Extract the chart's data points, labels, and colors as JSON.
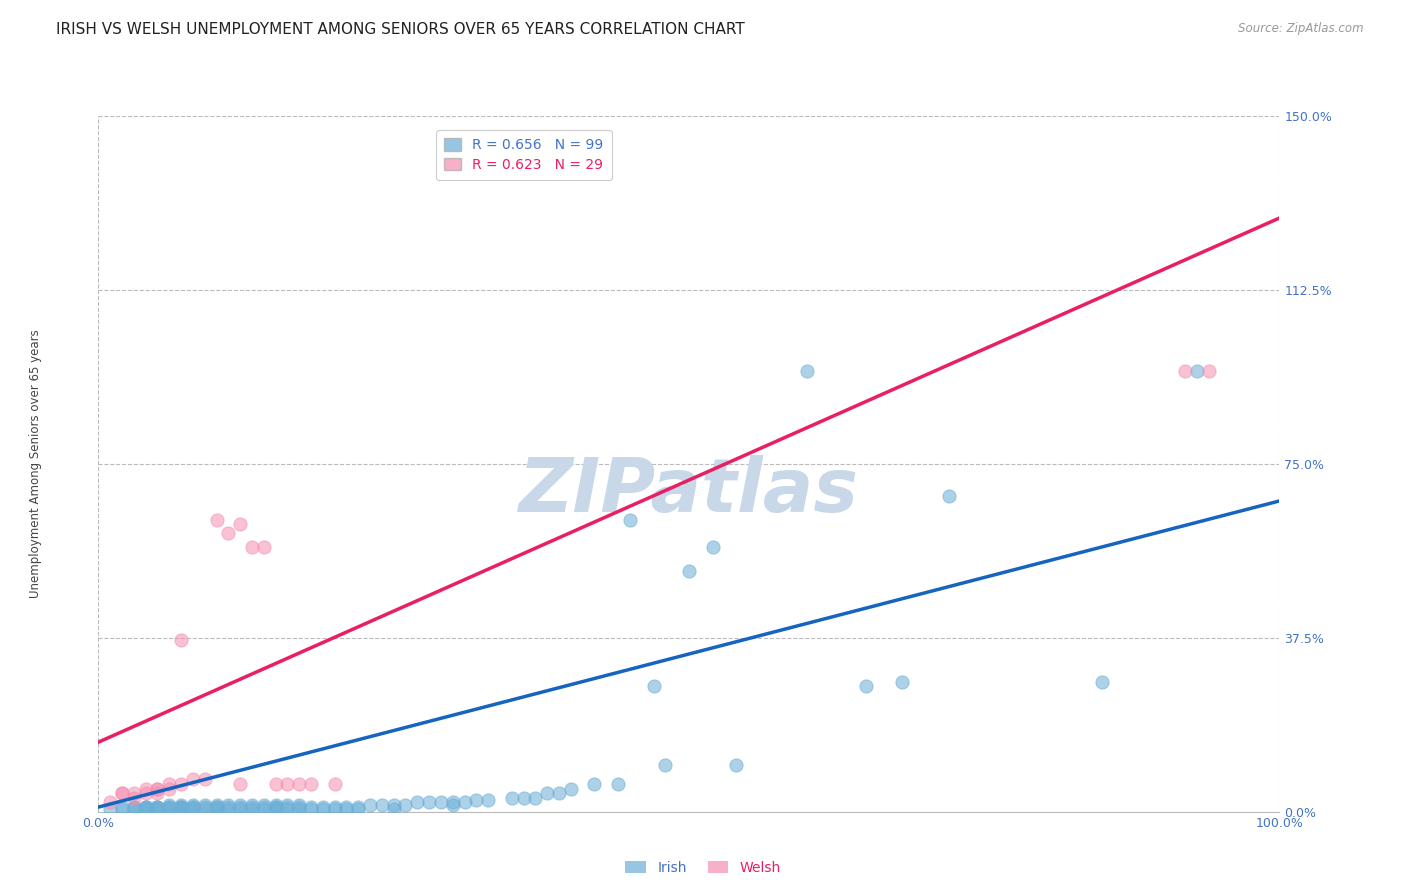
{
  "title": "IRISH VS WELSH UNEMPLOYMENT AMONG SENIORS OVER 65 YEARS CORRELATION CHART",
  "source": "Source: ZipAtlas.com",
  "ylabel": "Unemployment Among Seniors over 65 years",
  "xlim": [
    0.0,
    1.0
  ],
  "ylim": [
    0.0,
    1.5
  ],
  "xtick_positions": [
    0.0,
    1.0
  ],
  "xtick_labels": [
    "0.0%",
    "100.0%"
  ],
  "ytick_values": [
    0.0,
    0.375,
    0.75,
    1.125,
    1.5
  ],
  "ytick_labels": [
    "0.0%",
    "37.5%",
    "75.0%",
    "112.5%",
    "150.0%"
  ],
  "irish_R": 0.656,
  "irish_N": 99,
  "welsh_R": 0.623,
  "welsh_N": 29,
  "irish_color": "#6baed6",
  "welsh_color": "#f48fb1",
  "irish_line_color": "#1565c0",
  "welsh_line_color": "#e91e63",
  "irish_scatter_x": [
    0.01,
    0.02,
    0.02,
    0.03,
    0.03,
    0.03,
    0.04,
    0.04,
    0.04,
    0.04,
    0.05,
    0.05,
    0.05,
    0.05,
    0.06,
    0.06,
    0.06,
    0.06,
    0.07,
    0.07,
    0.07,
    0.07,
    0.07,
    0.08,
    0.08,
    0.08,
    0.08,
    0.09,
    0.09,
    0.09,
    0.1,
    0.1,
    0.1,
    0.1,
    0.11,
    0.11,
    0.11,
    0.12,
    0.12,
    0.12,
    0.13,
    0.13,
    0.13,
    0.14,
    0.14,
    0.14,
    0.15,
    0.15,
    0.15,
    0.15,
    0.16,
    0.16,
    0.16,
    0.17,
    0.17,
    0.17,
    0.18,
    0.18,
    0.19,
    0.19,
    0.2,
    0.2,
    0.21,
    0.21,
    0.22,
    0.22,
    0.23,
    0.24,
    0.25,
    0.25,
    0.26,
    0.27,
    0.28,
    0.29,
    0.3,
    0.3,
    0.31,
    0.32,
    0.33,
    0.35,
    0.36,
    0.37,
    0.38,
    0.39,
    0.4,
    0.42,
    0.44,
    0.45,
    0.47,
    0.48,
    0.5,
    0.52,
    0.54,
    0.6,
    0.65,
    0.68,
    0.72,
    0.85,
    0.93
  ],
  "irish_scatter_y": [
    0.005,
    0.005,
    0.01,
    0.005,
    0.01,
    0.01,
    0.005,
    0.01,
    0.01,
    0.01,
    0.005,
    0.01,
    0.01,
    0.01,
    0.005,
    0.01,
    0.01,
    0.015,
    0.005,
    0.01,
    0.01,
    0.015,
    0.01,
    0.005,
    0.01,
    0.01,
    0.015,
    0.005,
    0.01,
    0.015,
    0.005,
    0.01,
    0.01,
    0.015,
    0.005,
    0.01,
    0.015,
    0.005,
    0.01,
    0.015,
    0.005,
    0.01,
    0.015,
    0.005,
    0.01,
    0.015,
    0.005,
    0.01,
    0.01,
    0.015,
    0.005,
    0.01,
    0.015,
    0.005,
    0.01,
    0.015,
    0.005,
    0.01,
    0.005,
    0.01,
    0.005,
    0.01,
    0.005,
    0.01,
    0.005,
    0.01,
    0.015,
    0.015,
    0.005,
    0.015,
    0.015,
    0.02,
    0.02,
    0.02,
    0.015,
    0.02,
    0.02,
    0.025,
    0.025,
    0.03,
    0.03,
    0.03,
    0.04,
    0.04,
    0.05,
    0.06,
    0.06,
    0.63,
    0.27,
    0.1,
    0.52,
    0.57,
    0.1,
    0.95,
    0.27,
    0.28,
    0.68,
    0.28,
    0.95
  ],
  "welsh_scatter_x": [
    0.01,
    0.02,
    0.02,
    0.03,
    0.03,
    0.04,
    0.04,
    0.05,
    0.05,
    0.05,
    0.06,
    0.06,
    0.07,
    0.07,
    0.08,
    0.09,
    0.1,
    0.11,
    0.12,
    0.12,
    0.13,
    0.14,
    0.15,
    0.16,
    0.17,
    0.18,
    0.2,
    0.92,
    0.94
  ],
  "welsh_scatter_y": [
    0.02,
    0.04,
    0.04,
    0.03,
    0.04,
    0.04,
    0.05,
    0.04,
    0.05,
    0.05,
    0.05,
    0.06,
    0.37,
    0.06,
    0.07,
    0.07,
    0.63,
    0.6,
    0.62,
    0.06,
    0.57,
    0.57,
    0.06,
    0.06,
    0.06,
    0.06,
    0.06,
    0.95,
    0.95
  ],
  "irish_trend_x": [
    0.0,
    1.0
  ],
  "irish_trend_y": [
    0.01,
    0.67
  ],
  "welsh_trend_x": [
    0.0,
    1.0
  ],
  "welsh_trend_y": [
    0.15,
    1.28
  ],
  "watermark": "ZIPatlas",
  "watermark_color": "#c8d8e8",
  "background_color": "#ffffff",
  "grid_color": "#bbbbbb",
  "title_fontsize": 11,
  "axis_label_fontsize": 8.5,
  "tick_fontsize": 9,
  "legend_fontsize": 10,
  "source_fontsize": 8.5
}
